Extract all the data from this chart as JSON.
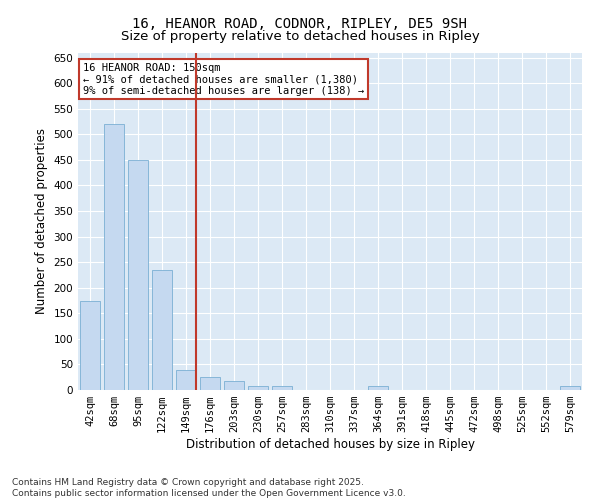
{
  "title_line1": "16, HEANOR ROAD, CODNOR, RIPLEY, DE5 9SH",
  "title_line2": "Size of property relative to detached houses in Ripley",
  "xlabel": "Distribution of detached houses by size in Ripley",
  "ylabel": "Number of detached properties",
  "categories": [
    "42sqm",
    "68sqm",
    "95sqm",
    "122sqm",
    "149sqm",
    "176sqm",
    "203sqm",
    "230sqm",
    "257sqm",
    "283sqm",
    "310sqm",
    "337sqm",
    "364sqm",
    "391sqm",
    "418sqm",
    "445sqm",
    "472sqm",
    "498sqm",
    "525sqm",
    "552sqm",
    "579sqm"
  ],
  "values": [
    175,
    520,
    450,
    235,
    40,
    25,
    18,
    8,
    8,
    0,
    0,
    0,
    8,
    0,
    0,
    0,
    0,
    0,
    0,
    0,
    8
  ],
  "bar_color": "#c5d9f0",
  "bar_edge_color": "#7bafd4",
  "vline_color": "#c0392b",
  "vline_x_index": 4,
  "annotation_text": "16 HEANOR ROAD: 150sqm\n← 91% of detached houses are smaller (1,380)\n9% of semi-detached houses are larger (138) →",
  "annotation_box_edgecolor": "#c0392b",
  "ylim": [
    0,
    660
  ],
  "yticks": [
    0,
    50,
    100,
    150,
    200,
    250,
    300,
    350,
    400,
    450,
    500,
    550,
    600,
    650
  ],
  "plot_bg_color": "#dce9f5",
  "footer_line1": "Contains HM Land Registry data © Crown copyright and database right 2025.",
  "footer_line2": "Contains public sector information licensed under the Open Government Licence v3.0.",
  "title_fontsize": 10,
  "subtitle_fontsize": 9.5,
  "axis_label_fontsize": 8.5,
  "tick_fontsize": 7.5,
  "annotation_fontsize": 7.5,
  "footer_fontsize": 6.5
}
